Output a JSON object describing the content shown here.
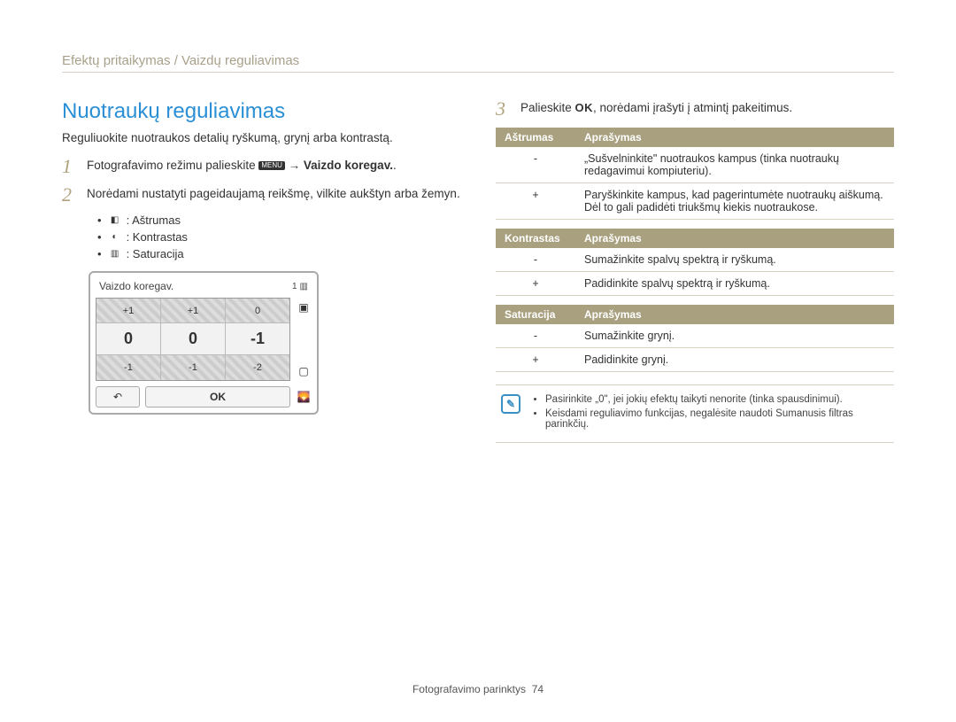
{
  "breadcrumb": "Efektų pritaikymas / Vaizdų reguliavimas",
  "title": "Nuotraukų reguliavimas",
  "intro": "Reguliuokite nuotraukos detalių ryškumą, grynį arba kontrastą.",
  "steps": {
    "s1_pre": "Fotografavimo režimu palieskite ",
    "s1_icon": "MENU",
    "s1_post": " → ",
    "s1_bold": "Vaizdo koregav.",
    "s1_dots": ".",
    "s2": "Norėdami nustatyti pageidaujamą reikšmę, vilkite aukštyn arba žemyn.",
    "s3_pre": "Palieskite ",
    "s3_ok": "OK",
    "s3_post": ", norėdami įrašyti į atmintį pakeitimus."
  },
  "bullets": {
    "b1": ": Aštrumas",
    "b2": ": Kontrastas",
    "b3": ": Saturacija"
  },
  "camera": {
    "title": "Vaizdo koregav.",
    "top_num": "1",
    "rows": [
      [
        "+1",
        "+1",
        "0"
      ],
      [
        "0",
        "0",
        "-1"
      ],
      [
        "-1",
        "-1",
        "-2"
      ]
    ],
    "back": "↶",
    "ok": "OK"
  },
  "tables": {
    "t1": {
      "h1": "Aštrumas",
      "h2": "Aprašymas",
      "r1s": "-",
      "r1d": "„Sušvelninkite\" nuotraukos kampus (tinka nuotraukų redagavimui kompiuteriu).",
      "r2s": "+",
      "r2d": "Paryškinkite kampus, kad pagerintumėte nuotraukų aiškumą. Dėl to gali padidėti triukšmų kiekis nuotraukose."
    },
    "t2": {
      "h1": "Kontrastas",
      "h2": "Aprašymas",
      "r1s": "-",
      "r1d": "Sumažinkite spalvų spektrą ir ryškumą.",
      "r2s": "+",
      "r2d": "Padidinkite spalvų spektrą ir ryškumą."
    },
    "t3": {
      "h1": "Saturacija",
      "h2": "Aprašymas",
      "r1s": "-",
      "r1d": "Sumažinkite grynį.",
      "r2s": "+",
      "r2d": "Padidinkite grynį."
    }
  },
  "notes": {
    "n1": "Pasirinkite „0\", jei jokių efektų taikyti nenorite (tinka spausdinimui).",
    "n2": "Keisdami reguliavimo funkcijas, negalėsite naudoti Sumanusis filtras parinkčių."
  },
  "footer": {
    "label": "Fotografavimo parinktys",
    "page": "74"
  },
  "colors": {
    "accent": "#2a8fd4",
    "table_header": "#a9a07f",
    "muted": "#a9a08a"
  }
}
